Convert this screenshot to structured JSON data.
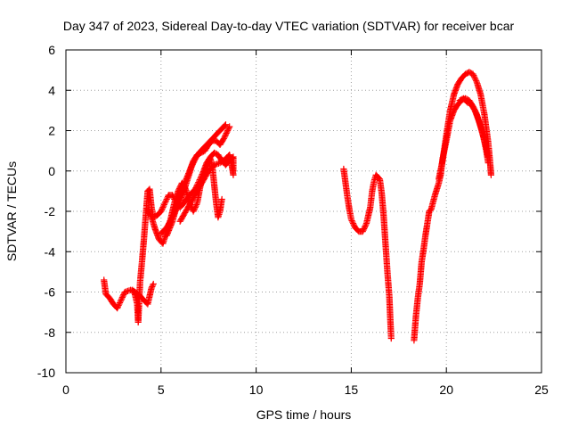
{
  "chart_data": {
    "type": "scatter",
    "title": "Day 347 of 2023, Sidereal Day-to-day VTEC variation (SDTVAR) for receiver bcar",
    "xlabel": "GPS time / hours",
    "ylabel": "SDTVAR / TECUs",
    "xlim": [
      0,
      25
    ],
    "ylim": [
      -10,
      6
    ],
    "xticks": [
      0,
      5,
      10,
      15,
      20,
      25
    ],
    "yticks": [
      -10,
      -8,
      -6,
      -4,
      -2,
      0,
      2,
      4,
      6
    ],
    "grid": true,
    "marker": "plus",
    "color": "#ff0000",
    "series": [
      {
        "segments": [
          [
            [
              2.0,
              -5.4
            ],
            [
              2.1,
              -6.1
            ],
            [
              2.3,
              -6.3
            ],
            [
              2.5,
              -6.6
            ],
            [
              2.7,
              -6.8
            ],
            [
              2.9,
              -6.4
            ],
            [
              3.1,
              -6.0
            ],
            [
              3.4,
              -5.9
            ],
            [
              3.6,
              -6.0
            ],
            [
              3.75,
              -6.6
            ],
            [
              3.8,
              -7.5
            ],
            [
              3.85,
              -6.5
            ],
            [
              3.9,
              -5.5
            ],
            [
              4.0,
              -4.5
            ],
            [
              4.1,
              -3.4
            ],
            [
              4.2,
              -2.2
            ],
            [
              4.3,
              -1.0
            ],
            [
              4.4,
              -0.9
            ],
            [
              4.5,
              -1.8
            ],
            [
              4.6,
              -2.3
            ],
            [
              4.8,
              -2.2
            ],
            [
              5.0,
              -2.0
            ],
            [
              5.2,
              -1.6
            ],
            [
              5.4,
              -1.2
            ],
            [
              5.6,
              -1.2
            ],
            [
              5.8,
              -1.6
            ],
            [
              6.0,
              -1.8
            ],
            [
              6.2,
              -1.6
            ],
            [
              6.5,
              -1.2
            ],
            [
              6.8,
              -0.9
            ],
            [
              7.0,
              -0.5
            ],
            [
              7.2,
              -0.1
            ],
            [
              7.4,
              0.4
            ],
            [
              7.6,
              0.7
            ],
            [
              7.8,
              0.9
            ],
            [
              8.0,
              0.8
            ],
            [
              8.2,
              0.5
            ],
            [
              8.4,
              0.3
            ],
            [
              8.6,
              0.5
            ],
            [
              8.8,
              0.7
            ],
            [
              8.8,
              0.0
            ]
          ],
          [
            [
              3.5,
              -5.9
            ],
            [
              3.65,
              -6.0
            ],
            [
              3.9,
              -6.2
            ],
            [
              4.1,
              -6.4
            ],
            [
              4.3,
              -6.6
            ],
            [
              4.4,
              -6.2
            ],
            [
              4.5,
              -5.8
            ],
            [
              4.6,
              -5.6
            ]
          ],
          [
            [
              4.3,
              -1.9
            ],
            [
              4.5,
              -2.3
            ],
            [
              4.7,
              -2.9
            ],
            [
              4.9,
              -3.4
            ],
            [
              5.1,
              -3.6
            ],
            [
              5.3,
              -3.0
            ],
            [
              5.5,
              -2.4
            ],
            [
              5.7,
              -1.6
            ],
            [
              5.9,
              -1.0
            ],
            [
              6.1,
              -0.6
            ],
            [
              6.3,
              -0.9
            ],
            [
              6.5,
              -1.6
            ],
            [
              6.7,
              -2.0
            ],
            [
              6.9,
              -1.6
            ],
            [
              7.1,
              -0.6
            ],
            [
              7.3,
              -0.1
            ],
            [
              7.5,
              0.5
            ],
            [
              7.6,
              0.6
            ],
            [
              7.7,
              0.2
            ],
            [
              7.8,
              -0.7
            ],
            [
              7.9,
              -1.6
            ],
            [
              8.0,
              -2.3
            ],
            [
              8.1,
              -2.0
            ],
            [
              8.2,
              -1.4
            ]
          ],
          [
            [
              5.0,
              -3.1
            ],
            [
              5.3,
              -2.8
            ],
            [
              5.6,
              -2.3
            ],
            [
              5.9,
              -1.7
            ],
            [
              6.2,
              -1.0
            ],
            [
              6.4,
              -0.4
            ],
            [
              6.6,
              0.2
            ],
            [
              6.8,
              0.6
            ],
            [
              7.0,
              0.9
            ],
            [
              7.2,
              1.1
            ],
            [
              7.4,
              1.3
            ],
            [
              7.6,
              1.5
            ],
            [
              7.8,
              1.7
            ],
            [
              8.0,
              1.9
            ],
            [
              8.2,
              2.1
            ],
            [
              8.4,
              2.3
            ]
          ],
          [
            [
              5.3,
              -3.2
            ],
            [
              5.6,
              -2.5
            ],
            [
              5.9,
              -1.5
            ],
            [
              6.2,
              -0.7
            ],
            [
              6.5,
              0.0
            ],
            [
              6.7,
              0.5
            ],
            [
              6.9,
              0.8
            ],
            [
              7.1,
              0.9
            ],
            [
              7.3,
              1.0
            ],
            [
              7.5,
              1.3
            ],
            [
              7.7,
              1.5
            ],
            [
              7.9,
              1.5
            ],
            [
              8.1,
              1.3
            ],
            [
              8.3,
              1.6
            ],
            [
              8.5,
              2.0
            ],
            [
              8.6,
              2.2
            ]
          ],
          [
            [
              6.0,
              -2.5
            ],
            [
              6.3,
              -2.0
            ],
            [
              6.6,
              -1.5
            ],
            [
              6.9,
              -1.0
            ],
            [
              7.2,
              -0.5
            ],
            [
              7.5,
              0.0
            ],
            [
              7.8,
              0.3
            ],
            [
              8.1,
              0.4
            ],
            [
              8.4,
              0.6
            ],
            [
              8.6,
              0.8
            ],
            [
              8.7,
              0.4
            ],
            [
              8.8,
              -0.2
            ]
          ],
          [
            [
              14.6,
              0.1
            ],
            [
              14.7,
              -0.6
            ],
            [
              14.8,
              -1.3
            ],
            [
              14.9,
              -1.9
            ],
            [
              15.0,
              -2.4
            ],
            [
              15.2,
              -2.8
            ],
            [
              15.4,
              -3.0
            ],
            [
              15.6,
              -3.0
            ],
            [
              15.8,
              -2.6
            ],
            [
              16.0,
              -1.8
            ],
            [
              16.1,
              -1.0
            ],
            [
              16.2,
              -0.5
            ],
            [
              16.3,
              -0.2
            ],
            [
              16.4,
              -0.3
            ],
            [
              16.5,
              -0.4
            ],
            [
              16.6,
              -1.1
            ],
            [
              16.7,
              -2.2
            ],
            [
              16.8,
              -3.6
            ],
            [
              16.9,
              -5.0
            ],
            [
              17.0,
              -6.2
            ],
            [
              17.05,
              -7.3
            ],
            [
              17.1,
              -8.3
            ]
          ],
          [
            [
              18.3,
              -8.4
            ],
            [
              18.4,
              -7.2
            ],
            [
              18.5,
              -6.3
            ],
            [
              18.6,
              -5.6
            ],
            [
              18.7,
              -4.5
            ],
            [
              18.8,
              -3.9
            ],
            [
              18.9,
              -3.2
            ],
            [
              19.0,
              -2.6
            ],
            [
              19.1,
              -2.0
            ],
            [
              19.2,
              -1.9
            ],
            [
              19.4,
              -1.2
            ],
            [
              19.6,
              -0.6
            ],
            [
              19.7,
              -0.2
            ],
            [
              19.8,
              0.6
            ],
            [
              20.0,
              1.5
            ],
            [
              20.2,
              2.5
            ],
            [
              20.4,
              3.0
            ],
            [
              20.6,
              3.3
            ],
            [
              20.8,
              3.5
            ],
            [
              21.0,
              3.6
            ],
            [
              21.2,
              3.5
            ],
            [
              21.4,
              3.2
            ],
            [
              21.6,
              2.8
            ],
            [
              21.8,
              2.2
            ],
            [
              22.0,
              1.5
            ],
            [
              22.2,
              0.7
            ]
          ],
          [
            [
              19.6,
              -0.4
            ],
            [
              19.8,
              0.5
            ],
            [
              20.0,
              1.8
            ],
            [
              20.2,
              3.0
            ],
            [
              20.4,
              3.8
            ],
            [
              20.6,
              4.3
            ],
            [
              20.8,
              4.6
            ],
            [
              21.0,
              4.8
            ],
            [
              21.2,
              4.9
            ],
            [
              21.4,
              4.8
            ],
            [
              21.6,
              4.4
            ],
            [
              21.8,
              3.8
            ],
            [
              22.0,
              2.8
            ],
            [
              22.2,
              1.4
            ],
            [
              22.3,
              0.4
            ],
            [
              22.35,
              -0.2
            ]
          ],
          [
            [
              20.7,
              3.5
            ],
            [
              20.9,
              3.6
            ],
            [
              21.1,
              3.4
            ],
            [
              21.3,
              3.3
            ],
            [
              21.5,
              3.0
            ],
            [
              21.7,
              2.5
            ],
            [
              21.9,
              1.9
            ],
            [
              22.1,
              1.0
            ],
            [
              22.2,
              0.4
            ]
          ]
        ]
      }
    ]
  }
}
